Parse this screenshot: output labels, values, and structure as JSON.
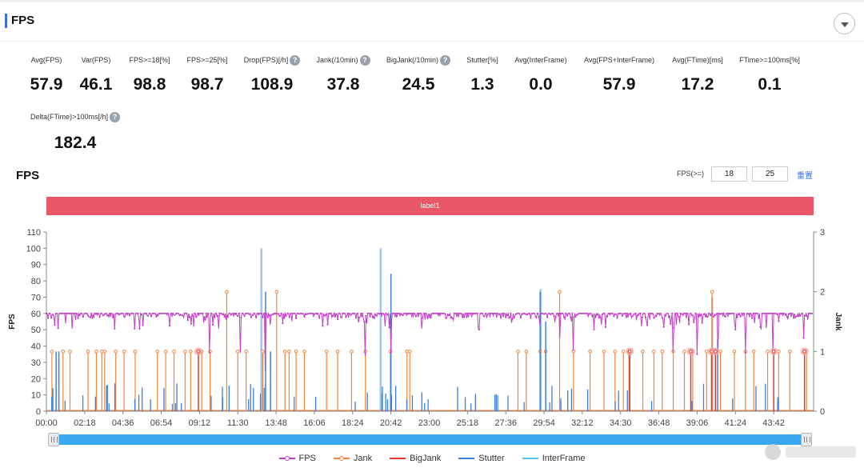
{
  "header": {
    "title": "FPS"
  },
  "metrics": [
    {
      "label": "Avg(FPS)",
      "value": "57.9",
      "help": false
    },
    {
      "label": "Var(FPS)",
      "value": "46.1",
      "help": false
    },
    {
      "label": "FPS>=18[%]",
      "value": "98.8",
      "help": false
    },
    {
      "label": "FPS>=25[%]",
      "value": "98.7",
      "help": false
    },
    {
      "label": "Drop(FPS)[/h]",
      "value": "108.9",
      "help": true
    },
    {
      "label": "Jank(/10min)",
      "value": "37.8",
      "help": true
    },
    {
      "label": "BigJank(/10min)",
      "value": "24.5",
      "help": true
    },
    {
      "label": "Stutter[%]",
      "value": "1.3",
      "help": false
    },
    {
      "label": "Avg(InterFrame)",
      "value": "0.0",
      "help": false
    },
    {
      "label": "Avg(FPS+InterFrame)",
      "value": "57.9",
      "help": false
    },
    {
      "label": "Avg(FTime)[ms]",
      "value": "17.2",
      "help": false
    },
    {
      "label": "FTime>=100ms[%]",
      "value": "0.1",
      "help": false
    },
    {
      "label": "Delta(FTime)>100ms[/h]",
      "value": "182.4",
      "help": true
    }
  ],
  "chart_section": {
    "title": "FPS",
    "filter_label": "FPS(>=)",
    "filter_values": [
      "18",
      "25"
    ],
    "reset_label": "重置",
    "label_bar": "label1"
  },
  "chart_data": {
    "type": "line",
    "title": "",
    "ylabel": "FPS",
    "y2label": "Jank",
    "ylim": [
      0,
      110
    ],
    "y_ticks": [
      0,
      10,
      20,
      30,
      40,
      50,
      60,
      70,
      80,
      90,
      100,
      110
    ],
    "y2lim": [
      0,
      3
    ],
    "y2_ticks": [
      0,
      1,
      2,
      3
    ],
    "x_ticks": [
      "00:00",
      "02:18",
      "04:36",
      "06:54",
      "09:12",
      "11:30",
      "13:48",
      "16:06",
      "18:24",
      "20:42",
      "23:00",
      "25:18",
      "27:36",
      "29:54",
      "32:12",
      "34:30",
      "36:48",
      "39:06",
      "41:24",
      "43:42"
    ],
    "x_range_seconds": [
      0,
      2760
    ],
    "legend_position": "bottom",
    "grid": false,
    "series": [
      {
        "name": "FPS",
        "axis": "left",
        "color": "#c23ec6",
        "baseline": 60,
        "typical_dips": [
          50,
          60
        ],
        "drops": [
          {
            "x": 588,
            "y": 36
          },
          {
            "x": 700,
            "y": 36
          },
          {
            "x": 790,
            "y": 25
          },
          {
            "x": 1150,
            "y": 34
          },
          {
            "x": 1242,
            "y": 36
          },
          {
            "x": 1780,
            "y": 53
          },
          {
            "x": 1850,
            "y": 45
          },
          {
            "x": 1900,
            "y": 37
          },
          {
            "x": 2260,
            "y": 36
          },
          {
            "x": 2345,
            "y": 35
          },
          {
            "x": 2420,
            "y": 36
          },
          {
            "x": 2520,
            "y": 36
          },
          {
            "x": 2620,
            "y": 36
          },
          {
            "x": 2730,
            "y": 45
          }
        ]
      },
      {
        "name": "Jank",
        "axis": "right",
        "color": "#f4843a",
        "events": [
          {
            "x": 20,
            "y": 1
          },
          {
            "x": 60,
            "y": 1
          },
          {
            "x": 85,
            "y": 1
          },
          {
            "x": 150,
            "y": 1
          },
          {
            "x": 180,
            "y": 1
          },
          {
            "x": 200,
            "y": 1
          },
          {
            "x": 210,
            "y": 1
          },
          {
            "x": 250,
            "y": 1
          },
          {
            "x": 280,
            "y": 1
          },
          {
            "x": 320,
            "y": 1
          },
          {
            "x": 400,
            "y": 1
          },
          {
            "x": 430,
            "y": 1
          },
          {
            "x": 460,
            "y": 1
          },
          {
            "x": 500,
            "y": 1
          },
          {
            "x": 520,
            "y": 1
          },
          {
            "x": 560,
            "y": 1
          },
          {
            "x": 590,
            "y": 1
          },
          {
            "x": 650,
            "y": 2
          },
          {
            "x": 690,
            "y": 1
          },
          {
            "x": 720,
            "y": 1
          },
          {
            "x": 780,
            "y": 1
          },
          {
            "x": 830,
            "y": 2
          },
          {
            "x": 860,
            "y": 1
          },
          {
            "x": 875,
            "y": 1
          },
          {
            "x": 900,
            "y": 1
          },
          {
            "x": 930,
            "y": 1
          },
          {
            "x": 1010,
            "y": 1
          },
          {
            "x": 1050,
            "y": 1
          },
          {
            "x": 1100,
            "y": 1
          },
          {
            "x": 1150,
            "y": 1
          },
          {
            "x": 1240,
            "y": 1
          },
          {
            "x": 1300,
            "y": 1
          },
          {
            "x": 1310,
            "y": 1
          },
          {
            "x": 1700,
            "y": 1
          },
          {
            "x": 1730,
            "y": 1
          },
          {
            "x": 1780,
            "y": 1
          },
          {
            "x": 1800,
            "y": 1
          },
          {
            "x": 1850,
            "y": 2
          },
          {
            "x": 1900,
            "y": 1
          },
          {
            "x": 1960,
            "y": 1
          },
          {
            "x": 2010,
            "y": 1
          },
          {
            "x": 2050,
            "y": 1
          },
          {
            "x": 2080,
            "y": 1
          },
          {
            "x": 2100,
            "y": 1
          },
          {
            "x": 2150,
            "y": 1
          },
          {
            "x": 2190,
            "y": 1
          },
          {
            "x": 2220,
            "y": 1
          },
          {
            "x": 2260,
            "y": 1
          },
          {
            "x": 2300,
            "y": 1
          },
          {
            "x": 2330,
            "y": 1
          },
          {
            "x": 2380,
            "y": 1
          },
          {
            "x": 2400,
            "y": 2
          },
          {
            "x": 2430,
            "y": 1
          },
          {
            "x": 2480,
            "y": 1
          },
          {
            "x": 2520,
            "y": 1
          },
          {
            "x": 2550,
            "y": 1
          },
          {
            "x": 2600,
            "y": 1
          },
          {
            "x": 2640,
            "y": 1
          },
          {
            "x": 2680,
            "y": 1
          },
          {
            "x": 2740,
            "y": 1
          }
        ]
      },
      {
        "name": "BigJank",
        "axis": "right",
        "color": "#e0382c",
        "events": [
          {
            "x": 548,
            "y": 1
          },
          {
            "x": 2103,
            "y": 1
          },
          {
            "x": 2323,
            "y": 1
          },
          {
            "x": 2398,
            "y": 1
          },
          {
            "x": 2412,
            "y": 1
          },
          {
            "x": 2622,
            "y": 1
          },
          {
            "x": 2733,
            "y": 1
          }
        ]
      },
      {
        "name": "Stutter",
        "axis": "right",
        "color": "#3d7fe3",
        "events": [
          {
            "x": 35,
            "y": 1
          },
          {
            "x": 45,
            "y": 1
          },
          {
            "x": 790,
            "y": 2
          },
          {
            "x": 808,
            "y": 1
          },
          {
            "x": 1242,
            "y": 2.3
          },
          {
            "x": 1780,
            "y": 2
          },
          {
            "x": 1800,
            "y": 1.5
          },
          {
            "x": 2420,
            "y": 1.2
          }
        ]
      },
      {
        "name": "InterFrame",
        "axis": "right",
        "color": "#4fc3e8",
        "events": []
      }
    ],
    "annotations": [
      {
        "type": "spike",
        "x": 775,
        "y": 100,
        "color": "#9ec6f2"
      },
      {
        "type": "spike",
        "x": 1205,
        "y": 100,
        "color": "#9ec6f2"
      },
      {
        "type": "spike",
        "x": 1782,
        "y": 75,
        "color": "#9ec6f2"
      },
      {
        "type": "spike",
        "x": 2400,
        "y": 70,
        "color": "#9ec6f2"
      }
    ]
  },
  "legend": [
    {
      "name": "FPS",
      "color": "#c23ec6",
      "dot": true
    },
    {
      "name": "Jank",
      "color": "#f4843a",
      "dot": true
    },
    {
      "name": "BigJank",
      "color": "#e0382c",
      "dot": false
    },
    {
      "name": "Stutter",
      "color": "#3d7fe3",
      "dot": false
    },
    {
      "name": "InterFrame",
      "color": "#4fc3e8",
      "dot": false
    }
  ]
}
